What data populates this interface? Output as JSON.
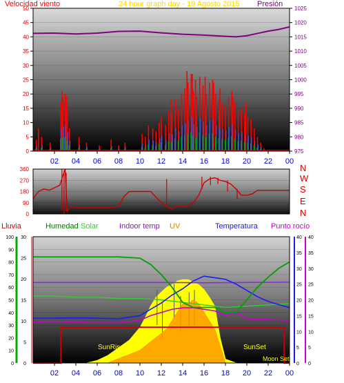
{
  "top_header": {
    "left_label": "Velocidad viento",
    "center_label": "24 hour graph day - 19 Agosto 2015",
    "right_label": "Presión"
  },
  "middle_header": {
    "compass": [
      "N",
      "W",
      "S",
      "E",
      "N"
    ]
  },
  "bottom_header": {
    "labels": [
      "Lluvia",
      "Humedad",
      "Solar",
      "Indoor temp",
      "UV",
      "Temperatura",
      "Punto rocío"
    ]
  },
  "bottom_annotations": {
    "sunrise": "SunRise",
    "sunset": "SunSet",
    "moonset": "Moon Set"
  },
  "colors": {
    "wind": "#ff0000",
    "gust": "#ff0000",
    "pressure": "#800080",
    "direction": "#cc0000",
    "humidity": "#00a000",
    "solar": "#ffff00",
    "indoor": "#8a2be2",
    "uv": "#ff9900",
    "temperature": "#1a1aff",
    "dewpoint": "#cc00cc",
    "rain": "#cc0000",
    "header_wind": "#ff0000",
    "header_center": "#ffd700",
    "header_pressure": "#800080",
    "axis_label": "#cc0000",
    "xtick": "#0000cc"
  },
  "chart_data": [
    {
      "type": "line",
      "title": "24 hour graph day - 19 Agosto 2015",
      "x_ticks": [
        "02",
        "04",
        "06",
        "08",
        "10",
        "12",
        "14",
        "16",
        "18",
        "20",
        "22",
        "00"
      ],
      "xlim": [
        0,
        24
      ],
      "left_axis": {
        "label": "Velocidad viento",
        "ylim": [
          0,
          50
        ],
        "ticks": [
          0,
          5,
          10,
          15,
          20,
          25,
          30,
          35,
          40,
          45,
          50
        ]
      },
      "right_axis": {
        "label": "Presión",
        "ylim": [
          975,
          1025
        ],
        "ticks": [
          975,
          980,
          985,
          990,
          995,
          1000,
          1005,
          1010,
          1015,
          1020,
          1025
        ]
      },
      "series": [
        {
          "name": "Presión",
          "axis": "right",
          "x": [
            0,
            2,
            4,
            6,
            8,
            10,
            12,
            14,
            16,
            18,
            19,
            20,
            21,
            22,
            23,
            24
          ],
          "values": [
            1016.2,
            1016.3,
            1016.0,
            1016.3,
            1016.9,
            1017.0,
            1016.4,
            1015.9,
            1015.6,
            1015.2,
            1015.0,
            1015.4,
            1016.2,
            1017.0,
            1017.6,
            1018.5
          ]
        }
      ],
      "bars": [
        {
          "name": "Velocidad viento",
          "color": "wind",
          "x": [
            0.3,
            0.8,
            1.6,
            2.6,
            2.8,
            3.0,
            3.2,
            3.4,
            4.3,
            5.0,
            6.2,
            7.3,
            8.0,
            8.6,
            10.2,
            10.5,
            10.8,
            11.2,
            11.5,
            11.8,
            12.0,
            12.4,
            12.7,
            13.0,
            13.3,
            13.6,
            13.9,
            14.2,
            14.5,
            14.8,
            15.0,
            15.3,
            15.6,
            15.9,
            16.2,
            16.5,
            16.8,
            17.1,
            17.4,
            17.7,
            18.0,
            18.3,
            18.6,
            18.9,
            19.2,
            19.5,
            19.8,
            20.1,
            20.4,
            20.7,
            21.0,
            21.3,
            21.6
          ],
          "values": [
            4,
            5,
            3,
            17,
            19,
            20,
            15,
            8,
            5,
            3,
            2,
            4,
            2,
            3,
            6,
            5,
            9,
            8,
            7,
            10,
            12,
            9,
            14,
            13,
            18,
            15,
            20,
            22,
            24,
            27,
            21,
            19,
            26,
            23,
            20,
            24,
            25,
            20,
            18,
            17,
            16,
            19,
            21,
            17,
            14,
            15,
            13,
            12,
            11,
            8,
            5,
            3,
            1
          ]
        },
        {
          "name": "Racha",
          "color": "wind",
          "x": [
            0.5,
            2.7,
            3.1,
            12.9,
            14.4,
            14.9,
            15.2,
            16.1,
            16.9,
            17.5,
            18.7,
            19.9
          ],
          "values": [
            8,
            21,
            19,
            18,
            28,
            27,
            25,
            26,
            24,
            22,
            19,
            17
          ]
        }
      ],
      "annotations": [
        "Velocidad viento",
        "Presión"
      ]
    },
    {
      "type": "line",
      "title": "",
      "x_ticks": [],
      "xlim": [
        0,
        24
      ],
      "left_axis": {
        "label": "",
        "ylim": [
          0,
          360
        ],
        "ticks": [
          0,
          90,
          180,
          270,
          360
        ]
      },
      "right_axis": {
        "labels": [
          "N",
          "W",
          "S",
          "E",
          "N"
        ]
      },
      "series": [
        {
          "name": "Dirección",
          "axis": "left",
          "x": [
            0,
            0.5,
            1.0,
            1.5,
            2.0,
            2.5,
            2.8,
            3.0,
            3.2,
            3.5,
            4.0,
            5.0,
            6.0,
            7.0,
            8.0,
            8.5,
            9.0,
            10.0,
            11.0,
            12.0,
            12.5,
            13.0,
            13.5,
            14.0,
            14.5,
            15.0,
            15.5,
            16.0,
            16.5,
            17.0,
            17.5,
            18.0,
            18.5,
            19.0,
            19.5,
            20.0,
            20.5,
            21.0,
            21.5,
            22.0,
            23.0,
            24.0
          ],
          "values": [
            120,
            180,
            200,
            190,
            210,
            230,
            310,
            360,
            20,
            60,
            50,
            50,
            50,
            50,
            60,
            140,
            180,
            180,
            180,
            90,
            60,
            40,
            70,
            60,
            60,
            90,
            150,
            250,
            280,
            290,
            270,
            260,
            240,
            200,
            150,
            150,
            160,
            190,
            190,
            190,
            190,
            190
          ]
        }
      ],
      "annotations": []
    },
    {
      "type": "line",
      "title": "",
      "x_ticks": [
        "02",
        "04",
        "06",
        "08",
        "10",
        "12",
        "14",
        "16",
        "18",
        "20",
        "22",
        "00"
      ],
      "xlim": [
        0,
        24
      ],
      "axes": {
        "lluvia": {
          "ylim": [
            0,
            30
          ],
          "ticks": [
            0,
            5,
            10,
            15,
            20,
            25,
            30
          ]
        },
        "humedad": {
          "ylim": [
            0,
            100
          ],
          "ticks": [
            0,
            10,
            20,
            30,
            40,
            50,
            60,
            70,
            80,
            90,
            100
          ]
        },
        "temperatura": {
          "ylim": [
            0,
            40
          ],
          "ticks": [
            0,
            5,
            10,
            15,
            20,
            25,
            30,
            35,
            40
          ]
        }
      },
      "series": [
        {
          "name": "Humedad",
          "axis": "humedad",
          "x": [
            0,
            2,
            4,
            5,
            6,
            8,
            10,
            11,
            12,
            13,
            14,
            15,
            16,
            17,
            18,
            19,
            20,
            21,
            22,
            23,
            24
          ],
          "values": [
            84,
            84,
            84,
            84,
            84,
            84,
            83,
            78,
            70,
            60,
            48,
            44,
            44,
            44,
            40,
            40,
            50,
            60,
            68,
            75,
            80
          ]
        },
        {
          "name": "Solar",
          "axis": "humedad",
          "x": [
            0,
            2,
            4,
            6,
            8,
            10,
            12,
            14,
            16,
            18,
            20,
            22,
            24
          ],
          "values": [
            53,
            53,
            52,
            52,
            51,
            51,
            50,
            48,
            46,
            44,
            45,
            46,
            47
          ]
        },
        {
          "name": "Solar radiation",
          "axis": "solar_area",
          "x": [
            0,
            5,
            6,
            7,
            8,
            9,
            10,
            10.5,
            11,
            11.5,
            12,
            12.5,
            13,
            13.5,
            14,
            14.5,
            15,
            15.5,
            16,
            16.5,
            17,
            17.5,
            18,
            19,
            24
          ],
          "values": [
            0,
            0,
            2,
            6,
            12,
            18,
            28,
            36,
            45,
            52,
            56,
            60,
            62,
            65,
            66,
            66,
            64,
            62,
            58,
            52,
            45,
            20,
            3,
            0,
            0
          ]
        },
        {
          "name": "Indoor temp",
          "axis": "temperatura",
          "x": [
            0,
            4,
            8,
            12,
            16,
            20,
            24
          ],
          "values": [
            25.5,
            25.5,
            25.5,
            25.5,
            25.4,
            25.5,
            25.6
          ]
        },
        {
          "name": "UV",
          "axis": "lluvia",
          "x": [
            0,
            7,
            8,
            9,
            10,
            11,
            12,
            12.5,
            13,
            13.5,
            14,
            14.5,
            15,
            15.5,
            16,
            16.5,
            17,
            17.5,
            18,
            24
          ],
          "values": [
            0,
            0,
            1,
            2,
            3,
            5,
            7,
            8,
            10,
            12,
            14,
            14,
            15,
            14,
            12,
            10,
            8,
            4,
            0,
            0
          ]
        },
        {
          "name": "Temperatura",
          "axis": "temperatura",
          "x": [
            0,
            2,
            4,
            6,
            8,
            9,
            10,
            11,
            12,
            13,
            14,
            15,
            16,
            17,
            18,
            19,
            20,
            21,
            22,
            23,
            24
          ],
          "values": [
            14.2,
            14.2,
            14.3,
            14.2,
            14.0,
            14.5,
            15.0,
            17.0,
            19.0,
            21.5,
            23.5,
            26.0,
            27.5,
            27.0,
            26.5,
            25.0,
            23.0,
            21.0,
            19.5,
            18.5,
            17.5
          ]
        },
        {
          "name": "Punto rocío",
          "axis": "temperatura",
          "x": [
            0,
            2,
            4,
            6,
            8,
            10,
            11,
            12,
            13,
            14,
            15,
            16,
            17,
            18,
            19,
            20,
            22,
            24
          ],
          "values": [
            13.0,
            13.2,
            13.0,
            12.8,
            12.8,
            13.5,
            15.0,
            16.0,
            17.0,
            17.5,
            17.5,
            17.0,
            16.5,
            15.0,
            16.0,
            14.0,
            13.8,
            13.5
          ]
        },
        {
          "name": "Lluvia",
          "axis": "lluvia",
          "x": [
            0,
            2.6,
            2.6,
            23.5,
            23.5,
            24
          ],
          "values": [
            0,
            0,
            8.5,
            8.5,
            0,
            0
          ]
        }
      ],
      "annotations": [
        "SunRise",
        "SunSet",
        "Moon Set"
      ]
    }
  ]
}
